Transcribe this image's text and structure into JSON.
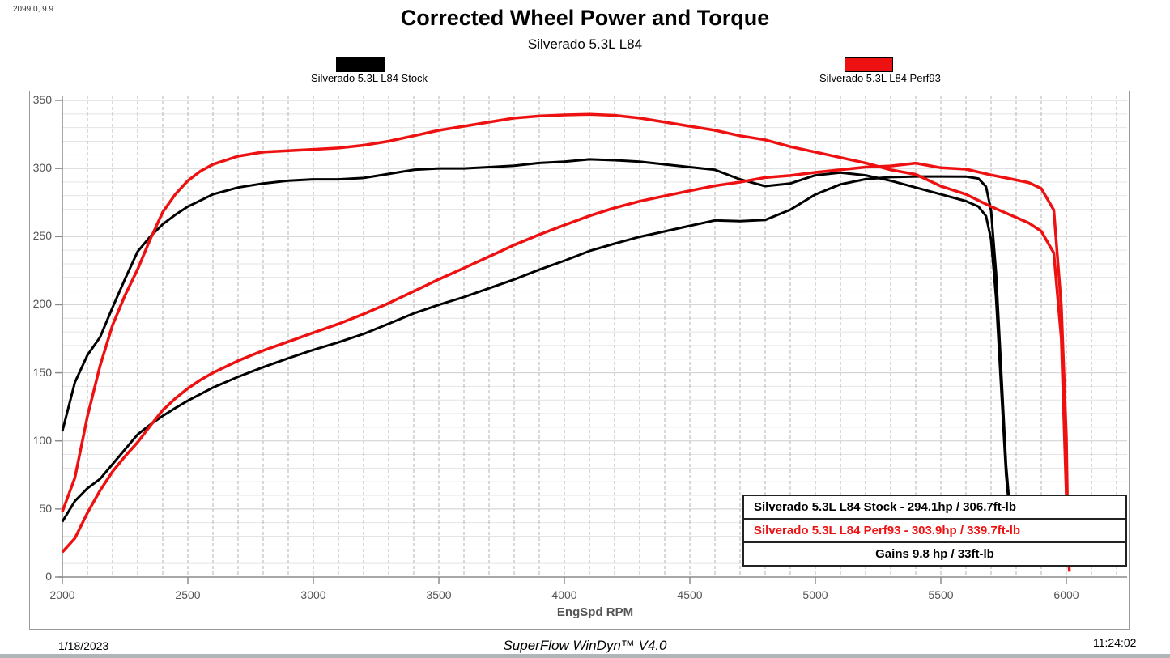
{
  "meta": {
    "run_info": "2099.0, 9.9",
    "date": "1/18/2023",
    "software": "SuperFlow WinDyn™ V4.0",
    "time": "11:24:02"
  },
  "header": {
    "title": "Corrected Wheel Power and Torque",
    "subtitle": "Silverado 5.3L L84"
  },
  "colors": {
    "stock": "#000000",
    "perf93": "#ee1111",
    "grid_minor": "#e4e4e4",
    "grid_major": "#cfcfcf",
    "grid_dash": "#b3b3b3",
    "axis": "#8c8c8c",
    "tick_text": "#555555"
  },
  "legend": [
    {
      "label": "Silverado 5.3L L84 Stock",
      "color": "#000000"
    },
    {
      "label": "Silverado 5.3L L84 Perf93",
      "color": "#ee1111"
    }
  ],
  "results_box": {
    "rows": [
      {
        "text": "Silverado 5.3L L84 Stock - 294.1hp / 306.7ft-lb",
        "color": "#000000",
        "align": "left"
      },
      {
        "text": "Silverado 5.3L L84 Perf93 - 303.9hp / 339.7ft-lb",
        "color": "#ee1111",
        "align": "left"
      },
      {
        "text": "Gains 9.8 hp / 33ft-lb",
        "color": "#000000",
        "align": "center"
      }
    ]
  },
  "chart_data": {
    "type": "line",
    "title": "Corrected Wheel Power and Torque",
    "subtitle": "Silverado 5.3L L84",
    "xlabel": "EngSpd RPM",
    "ylabel": "",
    "xlim": [
      2000,
      6250
    ],
    "ylim": [
      0,
      350
    ],
    "x_ticks": [
      2000,
      2500,
      3000,
      3500,
      4000,
      4500,
      5000,
      5500,
      6000
    ],
    "y_ticks": [
      0,
      50,
      100,
      150,
      200,
      250,
      300,
      350
    ],
    "grid": "minor horizontal every 10, dashed vertical every 100 RPM",
    "legend_position": "top",
    "peaks": {
      "stock_power_hp": 294.1,
      "stock_torque_ftlb": 306.7,
      "perf93_power_hp": 303.9,
      "perf93_torque_ftlb": 339.7,
      "gains": "9.8 hp / 33ft-lb"
    },
    "series": [
      {
        "name": "Stock torque (ft-lb)",
        "run": "Silverado 5.3L L84 Stock",
        "color": "#000000",
        "width": 3,
        "points": [
          [
            2000,
            107
          ],
          [
            2050,
            143
          ],
          [
            2100,
            163
          ],
          [
            2150,
            176
          ],
          [
            2200,
            198
          ],
          [
            2250,
            219
          ],
          [
            2300,
            239
          ],
          [
            2350,
            250
          ],
          [
            2400,
            259
          ],
          [
            2450,
            266
          ],
          [
            2500,
            272
          ],
          [
            2600,
            281
          ],
          [
            2700,
            286
          ],
          [
            2800,
            289
          ],
          [
            2900,
            291
          ],
          [
            3000,
            292
          ],
          [
            3100,
            292
          ],
          [
            3200,
            293
          ],
          [
            3300,
            296
          ],
          [
            3400,
            299
          ],
          [
            3500,
            300
          ],
          [
            3600,
            300
          ],
          [
            3700,
            301
          ],
          [
            3800,
            302
          ],
          [
            3900,
            304
          ],
          [
            4000,
            305
          ],
          [
            4100,
            306.7
          ],
          [
            4200,
            306
          ],
          [
            4300,
            305
          ],
          [
            4400,
            303
          ],
          [
            4500,
            301
          ],
          [
            4600,
            299
          ],
          [
            4700,
            292
          ],
          [
            4800,
            287
          ],
          [
            4900,
            289
          ],
          [
            5000,
            295
          ],
          [
            5100,
            297
          ],
          [
            5200,
            295
          ],
          [
            5300,
            291
          ],
          [
            5400,
            286
          ],
          [
            5500,
            281
          ],
          [
            5600,
            276
          ],
          [
            5650,
            272
          ],
          [
            5680,
            265
          ],
          [
            5700,
            248
          ],
          [
            5720,
            205
          ],
          [
            5740,
            140
          ],
          [
            5760,
            75
          ],
          [
            5770,
            55
          ]
        ]
      },
      {
        "name": "Stock power (hp)",
        "run": "Silverado 5.3L L84 Stock",
        "color": "#000000",
        "width": 3,
        "points": [
          [
            2000,
            40.7
          ],
          [
            2050,
            55.8
          ],
          [
            2100,
            65.2
          ],
          [
            2150,
            72
          ],
          [
            2200,
            82.9
          ],
          [
            2250,
            93.8
          ],
          [
            2300,
            104.7
          ],
          [
            2350,
            111.9
          ],
          [
            2400,
            118.3
          ],
          [
            2450,
            124.1
          ],
          [
            2500,
            129.5
          ],
          [
            2600,
            139.1
          ],
          [
            2700,
            147
          ],
          [
            2800,
            154.1
          ],
          [
            2900,
            160.6
          ],
          [
            3000,
            166.8
          ],
          [
            3100,
            172.4
          ],
          [
            3200,
            178.5
          ],
          [
            3300,
            186
          ],
          [
            3400,
            193.6
          ],
          [
            3500,
            199.9
          ],
          [
            3600,
            205.6
          ],
          [
            3700,
            212
          ],
          [
            3800,
            218.5
          ],
          [
            3900,
            225.7
          ],
          [
            4000,
            232.3
          ],
          [
            4100,
            239.4
          ],
          [
            4200,
            244.8
          ],
          [
            4300,
            249.8
          ],
          [
            4400,
            253.8
          ],
          [
            4500,
            257.9
          ],
          [
            4600,
            261.9
          ],
          [
            4700,
            261.3
          ],
          [
            4800,
            262.2
          ],
          [
            4900,
            269.7
          ],
          [
            5000,
            280.9
          ],
          [
            5100,
            288.3
          ],
          [
            5200,
            292.1
          ],
          [
            5300,
            293.6
          ],
          [
            5400,
            294.1
          ],
          [
            5500,
            294.1
          ],
          [
            5600,
            294
          ],
          [
            5650,
            292.6
          ],
          [
            5680,
            286.6
          ],
          [
            5700,
            269.1
          ],
          [
            5720,
            223.3
          ],
          [
            5740,
            153
          ],
          [
            5760,
            82.2
          ],
          [
            5770,
            60.4
          ]
        ]
      },
      {
        "name": "Perf93 torque (ft-lb)",
        "run": "Silverado 5.3L L84 Perf93",
        "color": "#ee1111",
        "width": 3.5,
        "points": [
          [
            2000,
            48
          ],
          [
            2050,
            73
          ],
          [
            2100,
            118
          ],
          [
            2150,
            155
          ],
          [
            2200,
            185
          ],
          [
            2250,
            207
          ],
          [
            2300,
            226
          ],
          [
            2350,
            248
          ],
          [
            2400,
            268
          ],
          [
            2450,
            281
          ],
          [
            2500,
            291
          ],
          [
            2550,
            298
          ],
          [
            2600,
            303
          ],
          [
            2700,
            309
          ],
          [
            2800,
            312
          ],
          [
            2900,
            313
          ],
          [
            3000,
            314
          ],
          [
            3100,
            315
          ],
          [
            3200,
            317
          ],
          [
            3300,
            320
          ],
          [
            3400,
            324
          ],
          [
            3500,
            328
          ],
          [
            3600,
            331
          ],
          [
            3700,
            334
          ],
          [
            3800,
            337
          ],
          [
            3900,
            338.5
          ],
          [
            4000,
            339.3
          ],
          [
            4100,
            339.7
          ],
          [
            4200,
            339
          ],
          [
            4300,
            337
          ],
          [
            4400,
            334
          ],
          [
            4500,
            331
          ],
          [
            4600,
            328
          ],
          [
            4700,
            324
          ],
          [
            4800,
            321
          ],
          [
            4900,
            316
          ],
          [
            5000,
            312
          ],
          [
            5100,
            308
          ],
          [
            5200,
            304
          ],
          [
            5300,
            299
          ],
          [
            5400,
            295.6
          ],
          [
            5500,
            287
          ],
          [
            5600,
            281
          ],
          [
            5700,
            272
          ],
          [
            5800,
            264
          ],
          [
            5850,
            260
          ],
          [
            5900,
            254
          ],
          [
            5950,
            238
          ],
          [
            5980,
            175
          ],
          [
            6000,
            60
          ],
          [
            6012,
            4
          ]
        ]
      },
      {
        "name": "Perf93 power (hp)",
        "run": "Silverado 5.3L L84 Perf93",
        "color": "#ee1111",
        "width": 3.5,
        "points": [
          [
            2000,
            18.3
          ],
          [
            2050,
            28.5
          ],
          [
            2100,
            47.2
          ],
          [
            2150,
            63.5
          ],
          [
            2200,
            77.5
          ],
          [
            2250,
            88.7
          ],
          [
            2300,
            99
          ],
          [
            2350,
            111
          ],
          [
            2400,
            122.5
          ],
          [
            2450,
            131.1
          ],
          [
            2500,
            138.5
          ],
          [
            2550,
            144.7
          ],
          [
            2600,
            150
          ],
          [
            2700,
            158.8
          ],
          [
            2800,
            166.3
          ],
          [
            2900,
            172.8
          ],
          [
            3000,
            179.4
          ],
          [
            3100,
            185.9
          ],
          [
            3200,
            193.1
          ],
          [
            3300,
            201.1
          ],
          [
            3400,
            209.8
          ],
          [
            3500,
            218.6
          ],
          [
            3600,
            226.9
          ],
          [
            3700,
            235.3
          ],
          [
            3800,
            243.8
          ],
          [
            3900,
            251.4
          ],
          [
            4000,
            258.4
          ],
          [
            4100,
            265.2
          ],
          [
            4200,
            271.1
          ],
          [
            4300,
            275.9
          ],
          [
            4400,
            279.8
          ],
          [
            4500,
            283.6
          ],
          [
            4600,
            287.3
          ],
          [
            4700,
            290
          ],
          [
            4800,
            293.3
          ],
          [
            4900,
            294.8
          ],
          [
            5000,
            297.1
          ],
          [
            5100,
            299.1
          ],
          [
            5200,
            301
          ],
          [
            5300,
            301.8
          ],
          [
            5400,
            303.9
          ],
          [
            5500,
            300.5
          ],
          [
            5600,
            299.5
          ],
          [
            5700,
            295.2
          ],
          [
            5800,
            291.5
          ],
          [
            5850,
            289.6
          ],
          [
            5900,
            285.3
          ],
          [
            5950,
            269.5
          ],
          [
            5980,
            198.8
          ],
          [
            6000,
            102.8
          ],
          [
            6008,
            10
          ]
        ]
      }
    ]
  }
}
